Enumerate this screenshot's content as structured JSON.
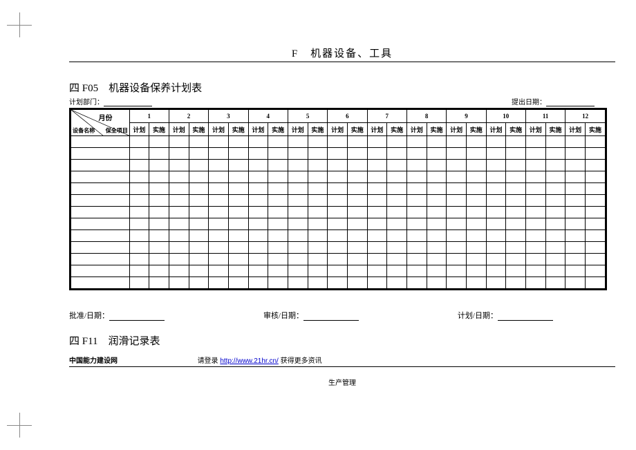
{
  "doc_title": "F　机器设备、工具",
  "sec1": {
    "title": "四 F05　机器设备保养计划表",
    "dept_label": "计划部门：",
    "date_label": "提出日期：",
    "diag_month": "月份",
    "diag_device": "设备名称",
    "diag_item": "保全项目",
    "months": [
      "1",
      "2",
      "3",
      "4",
      "5",
      "6",
      "7",
      "8",
      "9",
      "10",
      "11",
      "12"
    ],
    "sub_plan": "计划",
    "sub_impl": "实施",
    "body_rows": 13
  },
  "sign": {
    "approve": "批准/日期：",
    "review": "审核/日期：",
    "plan": "计划/日期："
  },
  "sec2_title": "四 F11　润滑记录表",
  "footer": {
    "site": "中国能力建设网",
    "pre": "请登录",
    "url_text": "http://www.21hr.cn/",
    "post": " 获得更多资讯"
  },
  "bottom_label": "生产管理",
  "style": {
    "border_color": "#000000",
    "link_color": "#0000cc",
    "bg": "#ffffff"
  }
}
